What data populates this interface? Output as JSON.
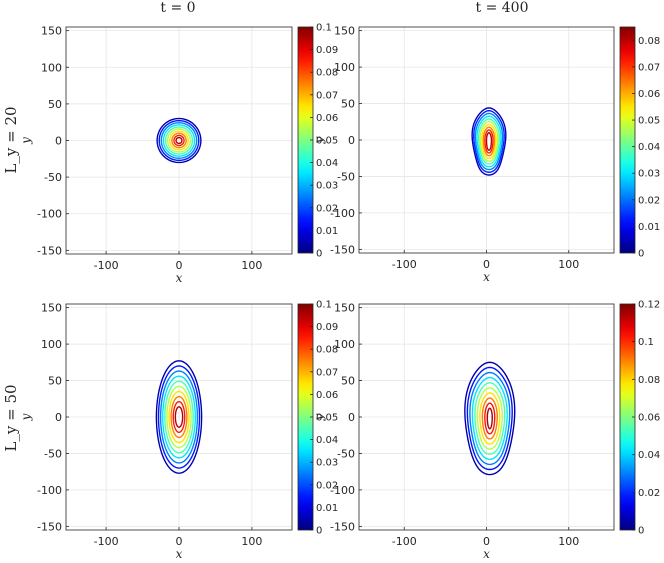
{
  "figure": {
    "column_titles": [
      "t = 0",
      "t = 400"
    ],
    "row_titles": [
      "L_y = 20",
      "L_y = 50"
    ]
  },
  "chart_data": [
    {
      "type": "contour",
      "id": "ly20-t0",
      "column_title": "t = 0",
      "row_title": "L_y = 20",
      "xlabel": "x",
      "ylabel": "y",
      "xlim": [
        -155,
        155
      ],
      "ylim": [
        -155,
        155
      ],
      "xticks": [
        -100,
        0,
        100
      ],
      "yticks": [
        150,
        100,
        50,
        0,
        -50,
        -100,
        -150
      ],
      "grid": true,
      "colorbar": {
        "min": 0,
        "max": 0.1,
        "ticks": [
          0.1,
          0.09,
          0.08,
          0.07,
          0.06,
          0.05,
          0.04,
          0.03,
          0.02,
          0.01,
          0
        ],
        "position": "right",
        "colormap": "jet"
      },
      "contours": {
        "center": [
          0,
          0
        ],
        "levels": 10,
        "level_min": 0.005,
        "level_max": 0.095,
        "outer_radius_x": 30,
        "outer_radius_y": 30,
        "inner_radius_x": 4,
        "inner_radius_y": 4,
        "wobble": 0
      }
    },
    {
      "type": "contour",
      "id": "ly20-t400",
      "column_title": "t = 400",
      "row_title": "L_y = 20",
      "xlabel": "x",
      "ylabel": "y",
      "xlim": [
        -155,
        155
      ],
      "ylim": [
        -155,
        155
      ],
      "xticks": [
        -100,
        0,
        100
      ],
      "yticks": [
        150,
        100,
        50,
        0,
        -50,
        -100,
        -150
      ],
      "grid": true,
      "colorbar": {
        "min": 0,
        "max": 0.085,
        "ticks": [
          0.08,
          0.07,
          0.06,
          0.05,
          0.04,
          0.03,
          0.02,
          0.01,
          0
        ],
        "position": "right",
        "colormap": "jet"
      },
      "contours": {
        "center": [
          3,
          -2
        ],
        "levels": 10,
        "level_min": 0.005,
        "level_max": 0.08,
        "outer_radius_x": 20,
        "outer_radius_y": 46,
        "inner_radius_x": 3,
        "inner_radius_y": 12,
        "wobble": 0.08
      }
    },
    {
      "type": "contour",
      "id": "ly50-t0",
      "column_title": "t = 0",
      "row_title": "L_y = 50",
      "xlabel": "x",
      "ylabel": "y",
      "xlim": [
        -155,
        155
      ],
      "ylim": [
        -155,
        155
      ],
      "xticks": [
        -100,
        0,
        100
      ],
      "yticks": [
        150,
        100,
        50,
        0,
        -50,
        -100,
        -150
      ],
      "grid": true,
      "colorbar": {
        "min": 0,
        "max": 0.1,
        "ticks": [
          0.1,
          0.09,
          0.08,
          0.07,
          0.06,
          0.05,
          0.04,
          0.03,
          0.02,
          0.01,
          0
        ],
        "position": "right",
        "colormap": "jet"
      },
      "contours": {
        "center": [
          0,
          0
        ],
        "levels": 10,
        "level_min": 0.005,
        "level_max": 0.095,
        "outer_radius_x": 31,
        "outer_radius_y": 77,
        "inner_radius_x": 5,
        "inner_radius_y": 14,
        "wobble": 0
      }
    },
    {
      "type": "contour",
      "id": "ly50-t400",
      "column_title": "t = 400",
      "row_title": "L_y = 50",
      "xlabel": "x",
      "ylabel": "y",
      "xlim": [
        -155,
        155
      ],
      "ylim": [
        -155,
        155
      ],
      "xticks": [
        -100,
        0,
        100
      ],
      "yticks": [
        150,
        100,
        50,
        0,
        -50,
        -100,
        -150
      ],
      "grid": true,
      "colorbar": {
        "min": 0,
        "max": 0.12,
        "ticks": [
          0.12,
          0.1,
          0.08,
          0.06,
          0.04,
          0.02,
          0
        ],
        "position": "right",
        "colormap": "jet"
      },
      "contours": {
        "center": [
          4,
          -2
        ],
        "levels": 10,
        "level_min": 0.005,
        "level_max": 0.115,
        "outer_radius_x": 30,
        "outer_radius_y": 77,
        "inner_radius_x": 3,
        "inner_radius_y": 14,
        "wobble": 0.05
      }
    }
  ]
}
